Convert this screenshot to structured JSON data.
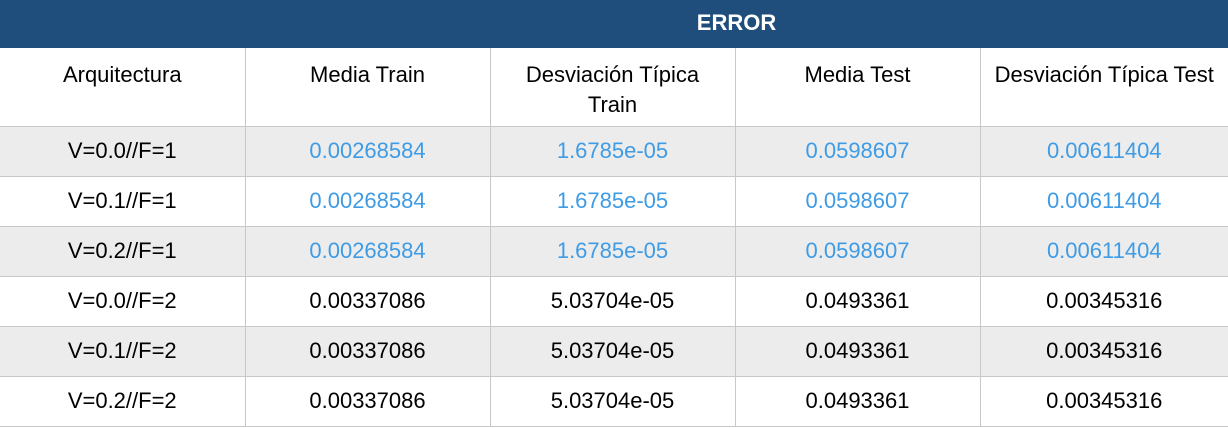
{
  "table": {
    "title": "ERROR",
    "headers": [
      "Arquitectura",
      "Media Train",
      "Desviación Típica Train",
      "Media Test",
      "Desviación Típica Test"
    ],
    "rows": [
      [
        "V=0.0//F=1",
        "0.00268584",
        "1.6785e-05",
        "0.0598607",
        "0.00611404"
      ],
      [
        "V=0.1//F=1",
        "0.00268584",
        "1.6785e-05",
        "0.0598607",
        "0.00611404"
      ],
      [
        "V=0.2//F=1",
        "0.00268584",
        "1.6785e-05",
        "0.0598607",
        "0.00611404"
      ],
      [
        "V=0.0//F=2",
        "0.00337086",
        "5.03704e-05",
        "0.0493361",
        "0.00345316"
      ],
      [
        "V=0.1//F=2",
        "0.00337086",
        "5.03704e-05",
        "0.0493361",
        "0.00345316"
      ],
      [
        "V=0.2//F=2",
        "0.00337086",
        "5.03704e-05",
        "0.0493361",
        "0.00345316"
      ]
    ]
  },
  "colors": {
    "title_bar": "#1f4e7d",
    "highlight_text": "#3e9be5",
    "shaded_row": "#ececec",
    "grid_line": "#c8c8c8"
  }
}
